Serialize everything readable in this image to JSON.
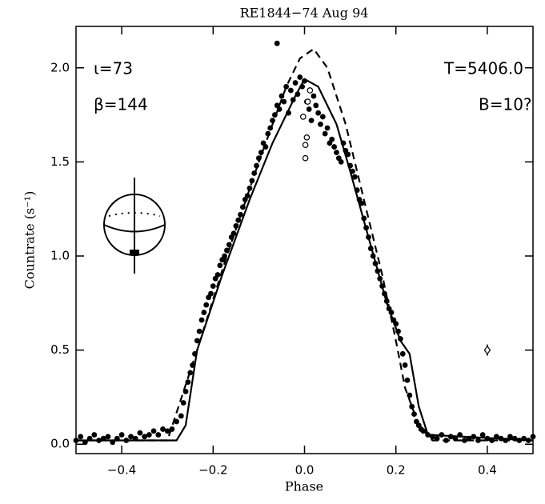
{
  "chart_data": {
    "type": "scatter",
    "title": "RE1844−74   Aug 94",
    "x_label": "Phase",
    "y_label": "Countrate (s⁻¹)",
    "annotations": [
      "ι=73",
      "β=144",
      "T=5406.0",
      "B=10?"
    ],
    "xlim": [
      -0.5,
      0.5
    ],
    "ylim": [
      -0.05,
      2.22
    ],
    "xticks": [
      {
        "value": -0.4,
        "label": "−0.4"
      },
      {
        "value": -0.2,
        "label": "−0.2"
      },
      {
        "value": 0,
        "label": "0.0"
      },
      0.2,
      0.4
    ],
    "yticks": [
      {
        "value": 0,
        "label": "0.0"
      },
      0.5,
      {
        "value": 1,
        "label": "1.0"
      },
      1.5,
      {
        "value": 2,
        "label": "2.0"
      }
    ],
    "series": [
      {
        "style": "filled",
        "color": "#000000",
        "x": [
          -0.5,
          -0.49,
          -0.48,
          -0.47,
          -0.46,
          -0.45,
          -0.44,
          -0.43,
          -0.42,
          -0.41,
          -0.4,
          -0.39,
          -0.38,
          -0.37,
          -0.36,
          -0.35,
          -0.34,
          -0.33,
          -0.32,
          -0.31,
          -0.3,
          -0.29,
          -0.28,
          -0.27,
          -0.265,
          -0.26,
          -0.255,
          -0.25,
          -0.245,
          -0.24,
          -0.235,
          -0.23,
          -0.225,
          -0.22,
          -0.215,
          -0.21,
          -0.205,
          -0.2,
          -0.195,
          -0.19,
          -0.185,
          -0.18,
          -0.175,
          -0.17,
          -0.165,
          -0.16,
          -0.155,
          -0.15,
          -0.145,
          -0.14,
          -0.135,
          -0.13,
          -0.125,
          -0.12,
          -0.115,
          -0.11,
          -0.105,
          -0.1,
          -0.095,
          -0.09,
          -0.085,
          -0.08,
          -0.075,
          -0.07,
          -0.065,
          -0.06,
          -0.055,
          -0.05,
          -0.045,
          -0.04,
          -0.035,
          -0.03,
          -0.025,
          -0.02,
          -0.015,
          -0.01,
          -0.005,
          0.0,
          0.005,
          0.01,
          0.015,
          0.02,
          0.025,
          0.03,
          0.035,
          0.04,
          0.045,
          0.05,
          0.055,
          0.06,
          0.065,
          0.07,
          0.075,
          0.08,
          0.085,
          0.09,
          0.095,
          0.1,
          0.105,
          0.11,
          0.115,
          0.12,
          0.125,
          0.13,
          0.135,
          0.14,
          0.145,
          0.15,
          0.155,
          0.16,
          0.165,
          0.17,
          0.175,
          0.18,
          0.185,
          0.19,
          0.195,
          0.2,
          0.205,
          0.21,
          0.215,
          0.22,
          0.225,
          0.23,
          0.235,
          0.24,
          0.245,
          0.25,
          0.255,
          0.26,
          0.27,
          0.28,
          0.29,
          0.3,
          0.31,
          0.32,
          0.33,
          0.34,
          0.35,
          0.36,
          0.37,
          0.38,
          0.39,
          0.4,
          0.41,
          0.42,
          0.43,
          0.44,
          0.45,
          0.46,
          0.47,
          0.48,
          0.49,
          0.5,
          -0.06
        ],
        "values": [
          0.02,
          0.04,
          0.01,
          0.03,
          0.05,
          0.02,
          0.03,
          0.04,
          0.01,
          0.03,
          0.05,
          0.02,
          0.04,
          0.03,
          0.06,
          0.04,
          0.05,
          0.07,
          0.05,
          0.08,
          0.07,
          0.08,
          0.12,
          0.15,
          0.22,
          0.28,
          0.33,
          0.38,
          0.42,
          0.48,
          0.55,
          0.6,
          0.66,
          0.7,
          0.74,
          0.78,
          0.8,
          0.84,
          0.88,
          0.9,
          0.95,
          0.98,
          1.0,
          1.03,
          1.06,
          1.1,
          1.12,
          1.16,
          1.19,
          1.22,
          1.26,
          1.3,
          1.32,
          1.36,
          1.4,
          1.44,
          1.48,
          1.52,
          1.55,
          1.6,
          1.58,
          1.65,
          1.68,
          1.72,
          1.75,
          1.8,
          1.78,
          1.85,
          1.82,
          1.9,
          1.76,
          1.88,
          1.83,
          1.92,
          1.86,
          1.95,
          1.9,
          1.93,
          1.82,
          1.78,
          1.72,
          1.85,
          1.8,
          1.76,
          1.7,
          1.74,
          1.65,
          1.68,
          1.6,
          1.62,
          1.58,
          1.55,
          1.52,
          1.5,
          1.6,
          1.56,
          1.54,
          1.48,
          1.45,
          1.42,
          1.35,
          1.3,
          1.28,
          1.2,
          1.15,
          1.1,
          1.04,
          1.0,
          0.96,
          0.92,
          0.88,
          0.84,
          0.8,
          0.76,
          0.72,
          0.7,
          0.66,
          0.64,
          0.6,
          0.56,
          0.48,
          0.42,
          0.34,
          0.26,
          0.2,
          0.16,
          0.12,
          0.1,
          0.08,
          0.07,
          0.05,
          0.04,
          0.03,
          0.05,
          0.02,
          0.04,
          0.03,
          0.05,
          0.02,
          0.03,
          0.04,
          0.02,
          0.05,
          0.03,
          0.02,
          0.04,
          0.03,
          0.02,
          0.04,
          0.03,
          0.02,
          0.03,
          0.02,
          0.04,
          2.13
        ]
      },
      {
        "style": "open",
        "color": "#000000",
        "x": [
          0.012,
          0.007,
          -0.003,
          0.005,
          0.002,
          0.002
        ],
        "values": [
          1.88,
          1.82,
          1.74,
          1.63,
          1.59,
          1.52
        ]
      },
      {
        "style": "solid",
        "color": "#000000",
        "x": [
          -0.5,
          -0.28,
          -0.26,
          -0.235,
          -0.18,
          -0.12,
          -0.07,
          -0.02,
          0.0,
          0.03,
          0.07,
          0.1,
          0.14,
          0.18,
          0.21,
          0.23,
          0.25,
          0.27,
          0.5
        ],
        "values": [
          0.02,
          0.02,
          0.1,
          0.5,
          0.9,
          1.3,
          1.6,
          1.85,
          1.94,
          1.9,
          1.7,
          1.45,
          1.1,
          0.75,
          0.55,
          0.48,
          0.2,
          0.05,
          0.02
        ]
      },
      {
        "style": "dashed",
        "color": "#000000",
        "x": [
          -0.5,
          -0.3,
          -0.235,
          -0.17,
          -0.1,
          -0.04,
          -0.01,
          0.02,
          0.05,
          0.09,
          0.13,
          0.17,
          0.2,
          0.22,
          0.25,
          0.28,
          0.5
        ],
        "values": [
          0.02,
          0.02,
          0.5,
          1.0,
          1.5,
          1.9,
          2.05,
          2.1,
          2.0,
          1.7,
          1.3,
          0.9,
          0.55,
          0.3,
          0.1,
          0.02,
          0.02
        ]
      },
      {
        "style": "errorbar",
        "color": "#000000",
        "x": [
          0.4
        ],
        "values": [
          0.5
        ],
        "error": [
          0.03
        ]
      }
    ]
  }
}
